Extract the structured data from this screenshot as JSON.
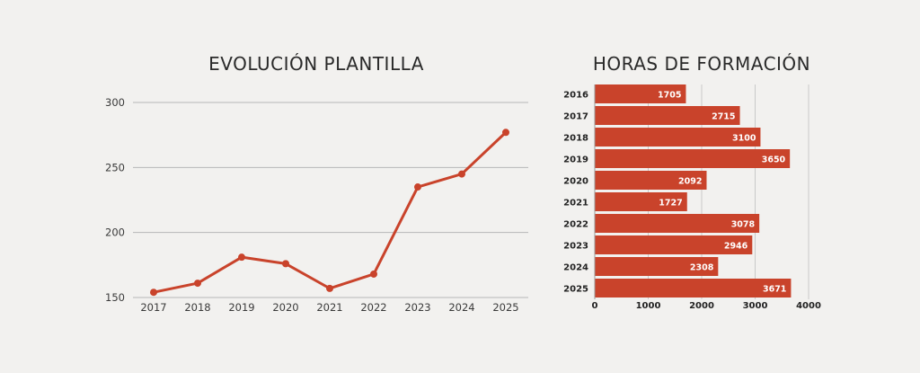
{
  "chart_data": [
    {
      "type": "line",
      "title": "EVOLUCIÓN PLANTILLA",
      "xlabel": "",
      "ylabel": "",
      "categories": [
        "2017",
        "2018",
        "2019",
        "2020",
        "2021",
        "2022",
        "2023",
        "2024",
        "2025"
      ],
      "values": [
        154,
        161,
        181,
        176,
        157,
        168,
        235,
        245,
        277
      ],
      "ylim": [
        150,
        300
      ],
      "yticks": [
        "300",
        "250",
        "200",
        "150"
      ],
      "grid": true,
      "color": "#c9432b"
    },
    {
      "type": "bar",
      "orientation": "horizontal",
      "title": "HORAS DE FORMACIÓN",
      "xlabel": "",
      "ylabel": "",
      "categories": [
        "2016",
        "2017",
        "2018",
        "2019",
        "2020",
        "2021",
        "2022",
        "2023",
        "2024",
        "2025"
      ],
      "values": [
        1705,
        2715,
        3100,
        3650,
        2092,
        1727,
        3078,
        2946,
        2308,
        3671
      ],
      "xlim": [
        0,
        4000
      ],
      "xticks": [
        "0",
        "1000",
        "2000",
        "3000",
        "4000"
      ],
      "grid": true,
      "color": "#c9432b"
    }
  ]
}
